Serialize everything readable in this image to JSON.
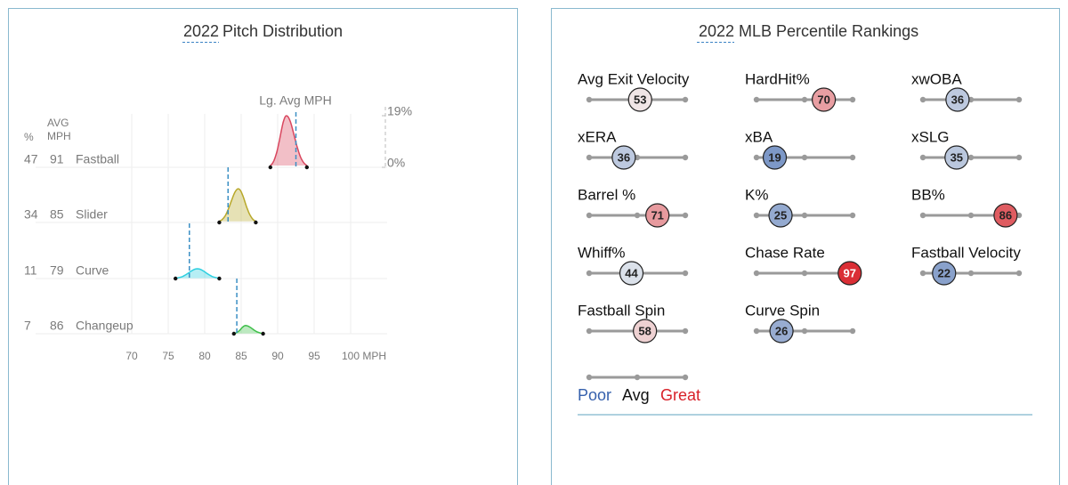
{
  "pitch_distribution": {
    "year": "2022",
    "title": "Pitch Distribution",
    "league_avg_label": "Lg. Avg MPH",
    "pct_header": "%",
    "avg_header": [
      "AVG",
      "MPH"
    ],
    "xlim": [
      70,
      105
    ],
    "xticks": [
      70,
      75,
      80,
      85,
      90,
      95,
      {
        "value": 100,
        "label": "100 MPH"
      }
    ],
    "density_lim": [
      0,
      19
    ],
    "density_ticks": [
      {
        "value": 19,
        "label": "19%"
      },
      {
        "value": 0,
        "label": "0%"
      }
    ],
    "grid": true,
    "pitches": [
      {
        "name": "Fastball",
        "pct": 47,
        "avg_mph": 91,
        "color": "#d9475f",
        "min": 89,
        "max": 94,
        "peak_mph": 91.2,
        "peak_density": 19,
        "league_avg": 92.5
      },
      {
        "name": "Slider",
        "pct": 34,
        "avg_mph": 85,
        "color": "#b8a82a",
        "min": 82,
        "max": 87,
        "peak_mph": 84.6,
        "peak_density": 12.4,
        "league_avg": 83.2
      },
      {
        "name": "Curve",
        "pct": 11,
        "avg_mph": 79,
        "color": "#2ecfe0",
        "min": 76,
        "max": 82,
        "peak_mph": 79,
        "peak_density": 3.6,
        "league_avg": 77.9
      },
      {
        "name": "Changeup",
        "pct": 7,
        "avg_mph": 86,
        "color": "#3fbf4a",
        "min": 84,
        "max": 88,
        "peak_mph": 85.6,
        "peak_density": 3,
        "league_avg": 84.4
      }
    ]
  },
  "percentile_rankings": {
    "year": "2022",
    "title": "MLB Percentile Rankings",
    "slider_lim": [
      0,
      100
    ],
    "slider_ticks": [
      0,
      50,
      100
    ],
    "color_scale": {
      "poor": "#3661ad",
      "avg": "#f2f2f2",
      "great": "#d82129"
    },
    "metrics": [
      {
        "name": "Avg Exit Velocity",
        "percentile": 53
      },
      {
        "name": "HardHit%",
        "percentile": 70
      },
      {
        "name": "xwOBA",
        "percentile": 36
      },
      {
        "name": "xERA",
        "percentile": 36
      },
      {
        "name": "xBA",
        "percentile": 19
      },
      {
        "name": "xSLG",
        "percentile": 35
      },
      {
        "name": "Barrel %",
        "percentile": 71
      },
      {
        "name": "K%",
        "percentile": 25
      },
      {
        "name": "BB%",
        "percentile": 86
      },
      {
        "name": "Whiff%",
        "percentile": 44
      },
      {
        "name": "Chase Rate",
        "percentile": 97
      },
      {
        "name": "Fastball Velocity",
        "percentile": 22
      },
      {
        "name": "Fastball Spin",
        "percentile": 58
      },
      {
        "name": "Curve Spin",
        "percentile": 26
      }
    ],
    "legend": {
      "poor": "Poor",
      "avg": "Avg",
      "great": "Great"
    }
  }
}
